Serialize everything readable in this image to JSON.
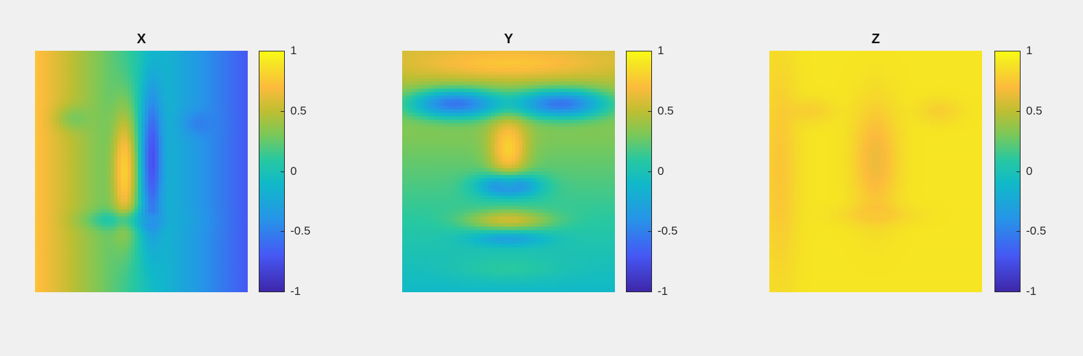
{
  "chart_data": [
    {
      "type": "heatmap",
      "title": "X",
      "description_colormap": "parula",
      "clim": [
        -1,
        1
      ],
      "colorbar_ticks": [
        1,
        0.5,
        0,
        -0.5,
        -1
      ],
      "colorbar_tick_labels": [
        "1",
        "0.5",
        "0",
        "-0.5",
        "-1"
      ],
      "gradient": "horizontal",
      "base_left": 0.75,
      "base_right": -0.7,
      "features": [
        {
          "cx": 0.42,
          "cy": 0.5,
          "rx": 0.06,
          "ry": 0.25,
          "v": 0.8
        },
        {
          "cx": 0.55,
          "cy": 0.45,
          "rx": 0.05,
          "ry": 0.3,
          "v": -0.75
        },
        {
          "cx": 0.2,
          "cy": 0.28,
          "rx": 0.09,
          "ry": 0.05,
          "v": 0.3
        },
        {
          "cx": 0.78,
          "cy": 0.3,
          "rx": 0.08,
          "ry": 0.05,
          "v": -0.5
        },
        {
          "cx": 0.5,
          "cy": 0.7,
          "rx": 0.2,
          "ry": 0.04,
          "v": -0.2
        }
      ]
    },
    {
      "type": "heatmap",
      "title": "Y",
      "description_colormap": "parula",
      "clim": [
        -1,
        1
      ],
      "colorbar_ticks": [
        1,
        0.5,
        0,
        -0.5,
        -1
      ],
      "colorbar_tick_labels": [
        "1",
        "0.5",
        "0",
        "-0.5",
        "-1"
      ],
      "gradient": "vertical",
      "base_top": 0.55,
      "base_bottom": -0.1,
      "features": [
        {
          "cx": 0.5,
          "cy": 0.05,
          "rx": 0.45,
          "ry": 0.06,
          "v": 0.75
        },
        {
          "cx": 0.25,
          "cy": 0.22,
          "rx": 0.22,
          "ry": 0.06,
          "v": -0.55
        },
        {
          "cx": 0.75,
          "cy": 0.22,
          "rx": 0.22,
          "ry": 0.06,
          "v": -0.55
        },
        {
          "cx": 0.5,
          "cy": 0.4,
          "rx": 0.09,
          "ry": 0.14,
          "v": 0.8
        },
        {
          "cx": 0.5,
          "cy": 0.56,
          "rx": 0.14,
          "ry": 0.05,
          "v": -0.6
        },
        {
          "cx": 0.5,
          "cy": 0.7,
          "rx": 0.2,
          "ry": 0.04,
          "v": 0.55
        },
        {
          "cx": 0.5,
          "cy": 0.78,
          "rx": 0.18,
          "ry": 0.03,
          "v": -0.3
        },
        {
          "cx": 0.5,
          "cy": 0.9,
          "rx": 0.25,
          "ry": 0.05,
          "v": 0.1
        }
      ]
    },
    {
      "type": "heatmap",
      "title": "Z",
      "description_colormap": "parula",
      "clim": [
        -1,
        1
      ],
      "colorbar_ticks": [
        1,
        0.5,
        0,
        -0.5,
        -1
      ],
      "colorbar_tick_labels": [
        "1",
        "0.5",
        "0",
        "-0.5",
        "-1"
      ],
      "gradient": "uniform",
      "base_top": 0.9,
      "base_bottom": 0.9,
      "features": [
        {
          "cx": 0.5,
          "cy": 0.45,
          "rx": 0.1,
          "ry": 0.22,
          "v": 0.65
        },
        {
          "cx": 0.05,
          "cy": 0.5,
          "rx": 0.08,
          "ry": 0.45,
          "v": 0.75
        },
        {
          "cx": 0.2,
          "cy": 0.25,
          "rx": 0.1,
          "ry": 0.05,
          "v": 0.8
        },
        {
          "cx": 0.8,
          "cy": 0.25,
          "rx": 0.1,
          "ry": 0.05,
          "v": 0.8
        },
        {
          "cx": 0.5,
          "cy": 0.68,
          "rx": 0.18,
          "ry": 0.04,
          "v": 0.8
        }
      ]
    }
  ]
}
